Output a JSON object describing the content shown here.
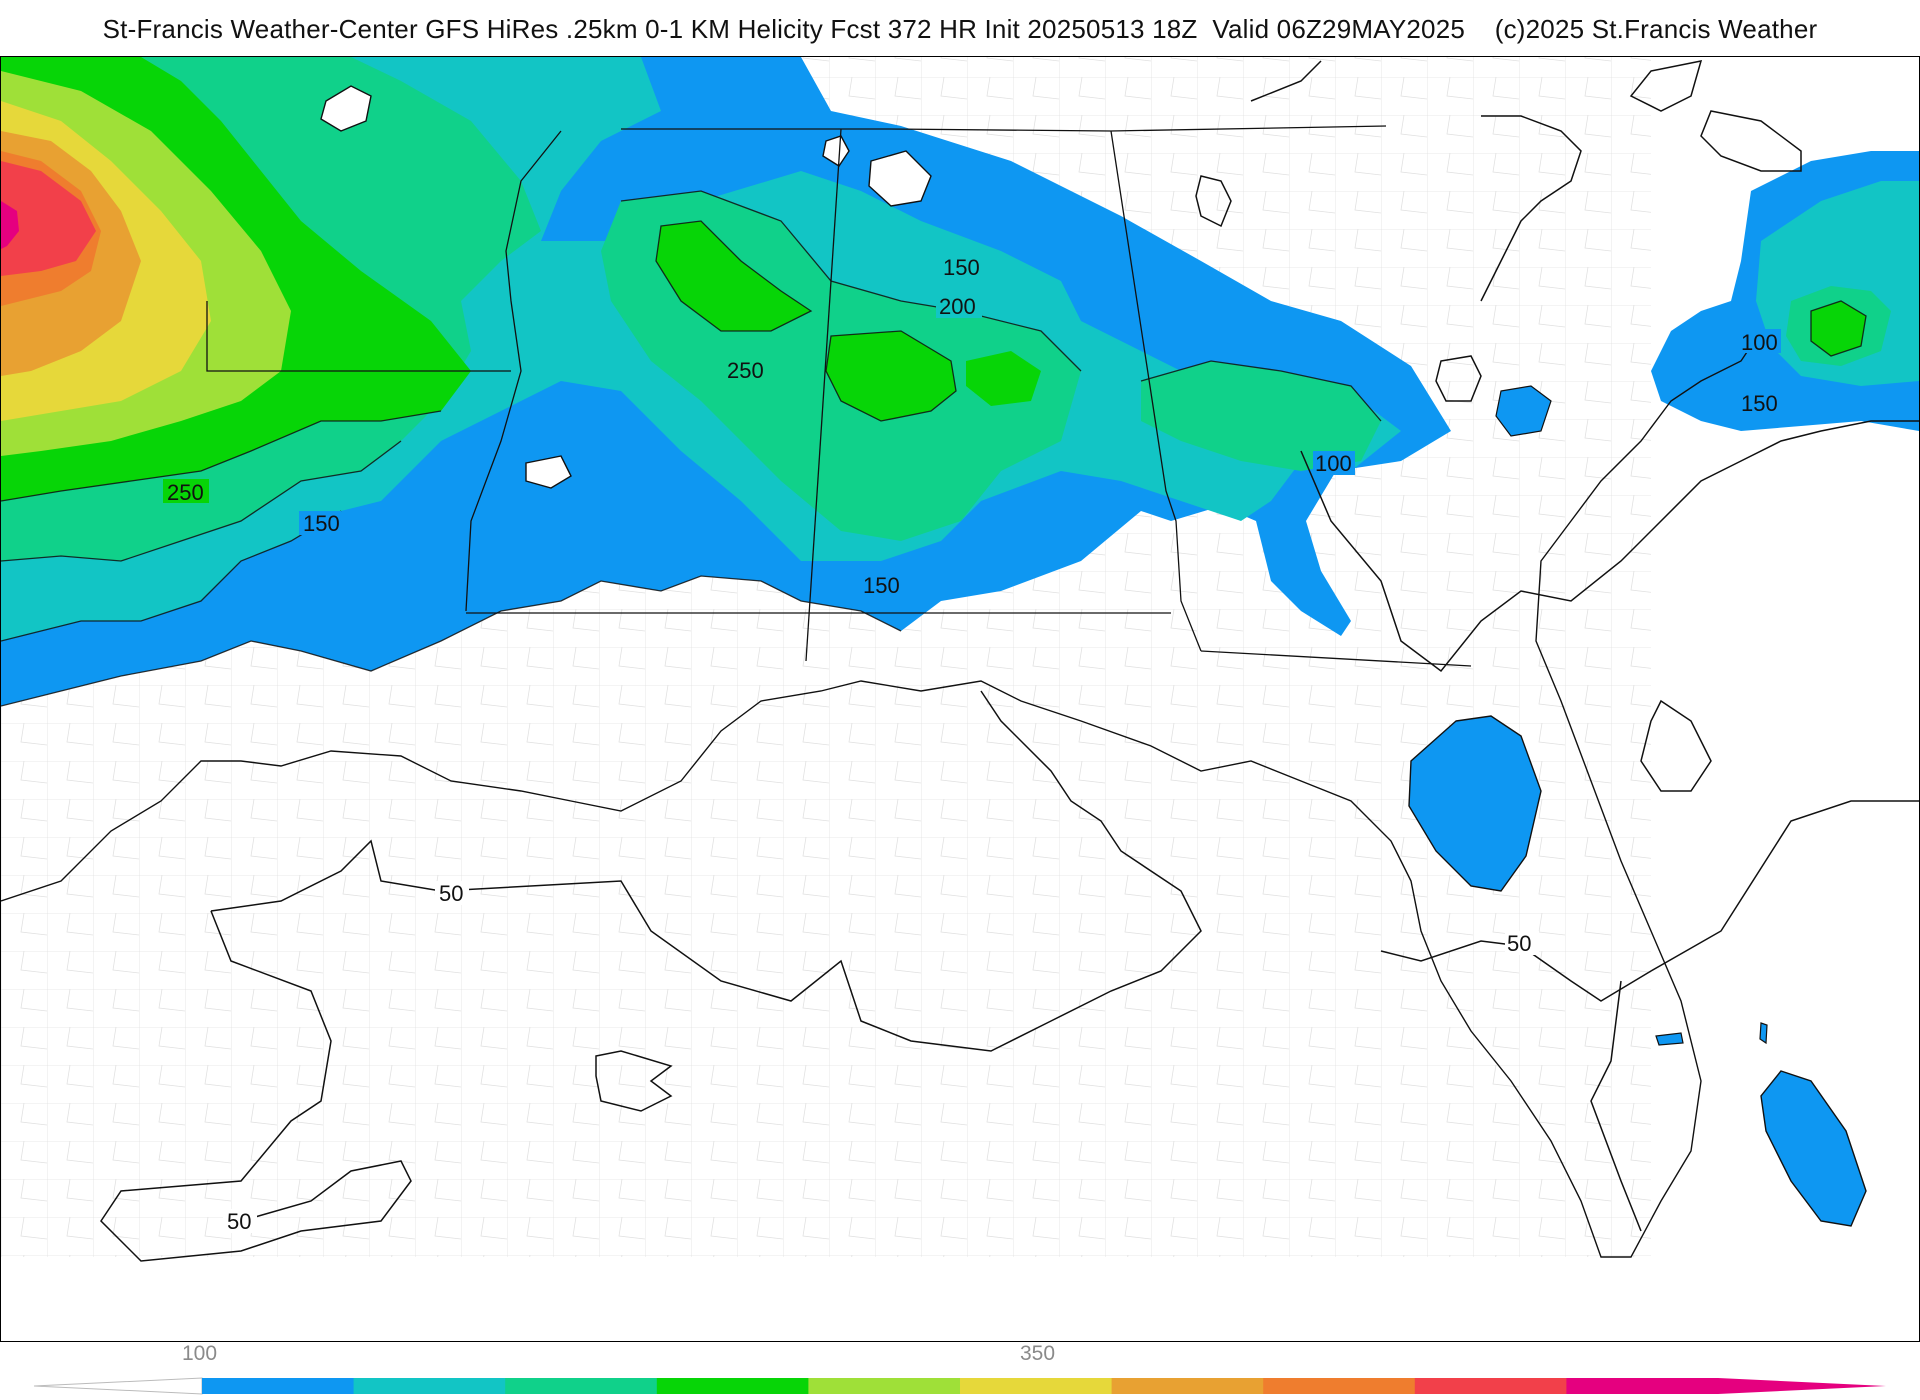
{
  "title": "St-Francis Weather-Center GFS HiRes .25km 0-1 KM Helicity Fcst 372 HR Init 20250513 18Z  Valid 06Z29MAY2025    (c)2025 St.Francis Weather",
  "contour_labels": [
    "150",
    "200",
    "250",
    "250",
    "150",
    "150",
    "100",
    "100",
    "150",
    "50",
    "50",
    "50"
  ],
  "colors": {
    "fill_100": "#0e97f2",
    "fill_150": "#12c5c5",
    "fill_200": "#10d18a",
    "fill_250": "#07d507",
    "fill_300": "#9fe038",
    "fill_350": "#e6d83a",
    "fill_400": "#e8a132",
    "fill_450": "#ef7d2e",
    "fill_500": "#f2404a",
    "fill_550": "#e5007f",
    "contour": "#111111",
    "boundary": "#bfbfbf"
  },
  "legend": {
    "tick_labels": [
      "100",
      "350"
    ],
    "colors": [
      "#0e97f2",
      "#12c5c5",
      "#10d18a",
      "#07d507",
      "#9fe038",
      "#e6d83a",
      "#e8a132",
      "#ef7d2e",
      "#f2404a",
      "#e5007f"
    ]
  }
}
